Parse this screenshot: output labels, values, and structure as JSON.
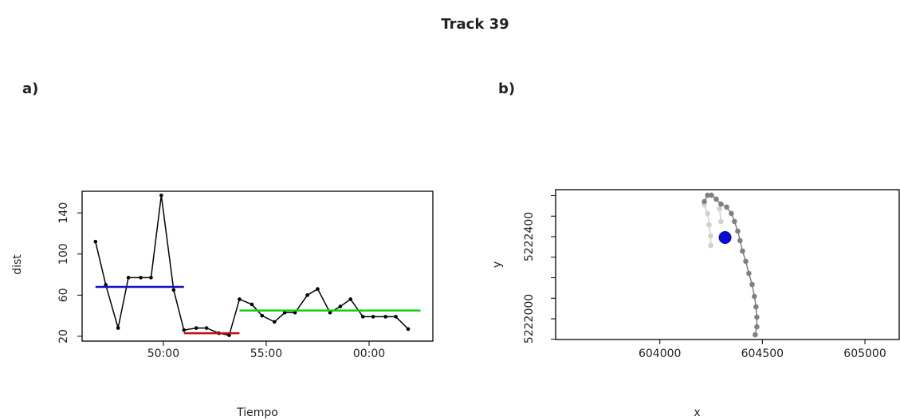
{
  "title": "Track 39",
  "chart_data": [
    {
      "type": "line",
      "panel_label": "a)",
      "xlabel": "Tiempo",
      "ylabel": "dist",
      "xlim": [
        46.05,
        63.1
      ],
      "ylim": [
        15.3,
        161
      ],
      "xticks": [
        {
          "value": 50,
          "label": "50:00"
        },
        {
          "value": 55,
          "label": "55:00"
        },
        {
          "value": 60,
          "label": "00:00"
        }
      ],
      "yticks": [
        20,
        60,
        100,
        140
      ],
      "series": [
        {
          "color": "#000000",
          "x": [
            46.7,
            47.2,
            47.8,
            48.3,
            48.9,
            49.4,
            49.9,
            50.5,
            51.0,
            51.6,
            52.1,
            52.7,
            53.2,
            53.7,
            54.3,
            54.8,
            55.4,
            55.9,
            56.4,
            57.0,
            57.5,
            58.1,
            58.6,
            59.1,
            59.7,
            60.2,
            60.8,
            61.3,
            61.9
          ],
          "values": [
            112,
            70,
            28,
            77,
            77,
            77,
            157,
            65,
            26,
            28,
            28,
            23,
            21,
            56,
            51,
            40,
            34,
            43,
            43,
            60,
            66,
            43,
            49,
            56,
            39,
            39,
            39,
            39,
            27
          ]
        }
      ],
      "segments": [
        {
          "color": "#1010c8",
          "x": [
            46.7,
            51.0
          ],
          "value": 68
        },
        {
          "color": "#c01010",
          "x": [
            51.0,
            53.7
          ],
          "value": 23
        },
        {
          "color": "#10d010",
          "x": [
            53.7,
            62.5
          ],
          "value": 45
        }
      ]
    },
    {
      "type": "scatter",
      "panel_label": "b)",
      "xlabel": "x",
      "ylabel": "y",
      "xlim": [
        603492,
        605167
      ],
      "ylim": [
        5221899,
        5222629
      ],
      "xticks": [
        604000,
        604500,
        605000
      ],
      "yticks": [
        5222000,
        5222400
      ],
      "minor_yticks": [
        5221900,
        5222100,
        5222200,
        5222300,
        5222500,
        5222600
      ],
      "series": [
        {
          "color": "#d0d0d0",
          "connect": true,
          "marker": "small",
          "x": [
            604217,
            604233,
            604240,
            604248,
            604248
          ],
          "values": [
            5222555,
            5222513,
            5222458,
            5222404,
            5222357
          ]
        },
        {
          "color": "#d0d0d0",
          "connect": true,
          "marker": "small",
          "x": [
            604291,
            604298
          ],
          "values": [
            5222536,
            5222474
          ]
        },
        {
          "color": "#808080",
          "connect": true,
          "marker": "small",
          "x": [
            604217,
            604233,
            604252,
            604275,
            604298,
            604326,
            604349,
            604364,
            604380,
            604391,
            604403,
            604419,
            604434,
            604450,
            604461,
            604469,
            604473,
            604473,
            604465
          ],
          "values": [
            5222571,
            5222602,
            5222602,
            5222583,
            5222559,
            5222544,
            5222513,
            5222474,
            5222427,
            5222381,
            5222330,
            5222280,
            5222221,
            5222167,
            5222109,
            5222058,
            5222008,
            5221961,
            5221922
          ]
        },
        {
          "color": "#0a0ad0",
          "connect": false,
          "marker": "large",
          "x": [
            604318
          ],
          "values": [
            5222396
          ]
        }
      ]
    }
  ]
}
